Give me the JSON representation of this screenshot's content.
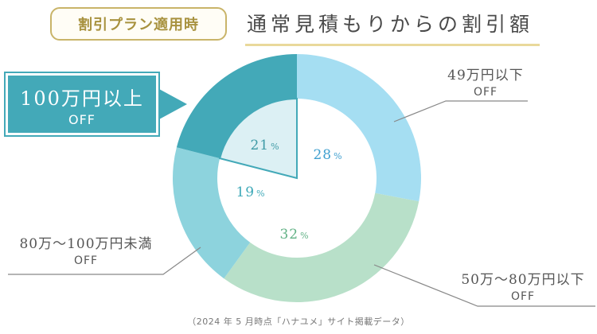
{
  "header": {
    "badge": "割引プラン適用時",
    "title": "通常見積もりからの割引額"
  },
  "chart_data": {
    "type": "pie",
    "style": "donut",
    "categories": [
      "49万円以下 OFF",
      "50万〜80万円以下 OFF",
      "80万〜100万円未満 OFF",
      "100万円以上 OFF"
    ],
    "values": [
      28,
      32,
      19,
      21
    ],
    "unit": "%",
    "colors": [
      "#a5def2",
      "#b8e0c9",
      "#8dd3dd",
      "#43a9b8"
    ],
    "label_colors": [
      "#3e9fcf",
      "#62b286",
      "#3ea9b8",
      "#3f9aa6"
    ],
    "highlight": "100万円以上 OFF",
    "source": "（2024 年 5 月時点「ハナユメ」サイト掲載データ）"
  },
  "labels": {
    "c0": {
      "main": "49万円以下",
      "off": "OFF"
    },
    "c1": {
      "main": "50万〜80万円以下",
      "off": "OFF"
    },
    "c2": {
      "main": "80万〜100万円未満",
      "off": "OFF"
    },
    "c3": {
      "main": "100万円以上",
      "off": "OFF"
    },
    "pct_sign": "%"
  }
}
